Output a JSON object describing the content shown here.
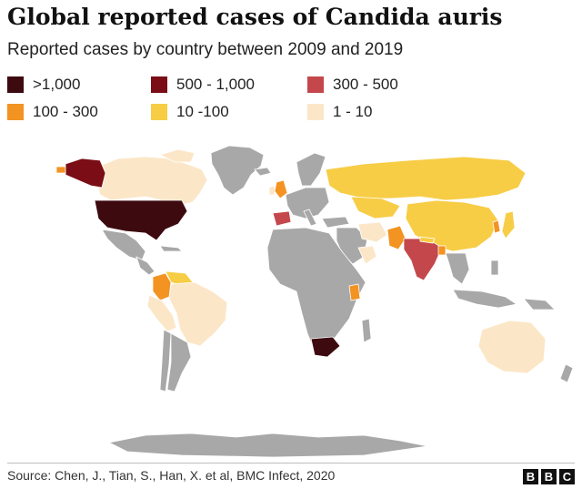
{
  "title": "Global reported cases of Candida auris",
  "subtitle": "Reported cases by country between 2009 and 2019",
  "legend": [
    {
      "label": ">1,000",
      "color": "#3d0a10"
    },
    {
      "label": "500 - 1,000",
      "color": "#7a0d16"
    },
    {
      "label": "300 - 500",
      "color": "#c4474c"
    },
    {
      "label": "100 - 300",
      "color": "#f39322"
    },
    {
      "label": "10 -100",
      "color": "#f7cd46"
    },
    {
      "label": "1 - 10",
      "color": "#fbe7c8"
    }
  ],
  "map": {
    "no_data_color": "#a8a8a8",
    "ocean_color": "#ffffff"
  },
  "source": "Source: Chen, J., Tian, S., Han, X. et al, BMC Infect, 2020",
  "logo": {
    "letters": [
      "B",
      "B",
      "C"
    ]
  }
}
